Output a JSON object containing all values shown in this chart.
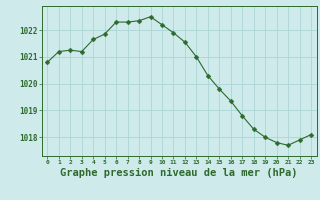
{
  "x": [
    0,
    1,
    2,
    3,
    4,
    5,
    6,
    7,
    8,
    9,
    10,
    11,
    12,
    13,
    14,
    15,
    16,
    17,
    18,
    19,
    20,
    21,
    22,
    23
  ],
  "y": [
    1020.8,
    1021.2,
    1021.25,
    1021.2,
    1021.65,
    1021.85,
    1022.3,
    1022.3,
    1022.35,
    1022.5,
    1022.2,
    1021.9,
    1021.55,
    1021.0,
    1020.3,
    1019.8,
    1019.35,
    1018.8,
    1018.3,
    1018.0,
    1017.8,
    1017.7,
    1017.9,
    1018.1
  ],
  "line_color": "#2d6a2d",
  "marker": "D",
  "marker_size": 2.5,
  "bg_color": "#ceeaea",
  "grid_color": "#b0d8d8",
  "tick_color": "#2d6a2d",
  "xlabel": "Graphe pression niveau de la mer (hPa)",
  "xlabel_fontsize": 7.5,
  "ylim_min": 1017.3,
  "ylim_max": 1022.9,
  "yticks": [
    1018,
    1019,
    1020,
    1021,
    1022
  ],
  "xticks": [
    0,
    1,
    2,
    3,
    4,
    5,
    6,
    7,
    8,
    9,
    10,
    11,
    12,
    13,
    14,
    15,
    16,
    17,
    18,
    19,
    20,
    21,
    22,
    23
  ],
  "xtick_labels": [
    "0",
    "1",
    "2",
    "3",
    "4",
    "5",
    "6",
    "7",
    "8",
    "9",
    "10",
    "11",
    "12",
    "13",
    "14",
    "15",
    "16",
    "17",
    "18",
    "19",
    "20",
    "21",
    "22",
    "23"
  ]
}
